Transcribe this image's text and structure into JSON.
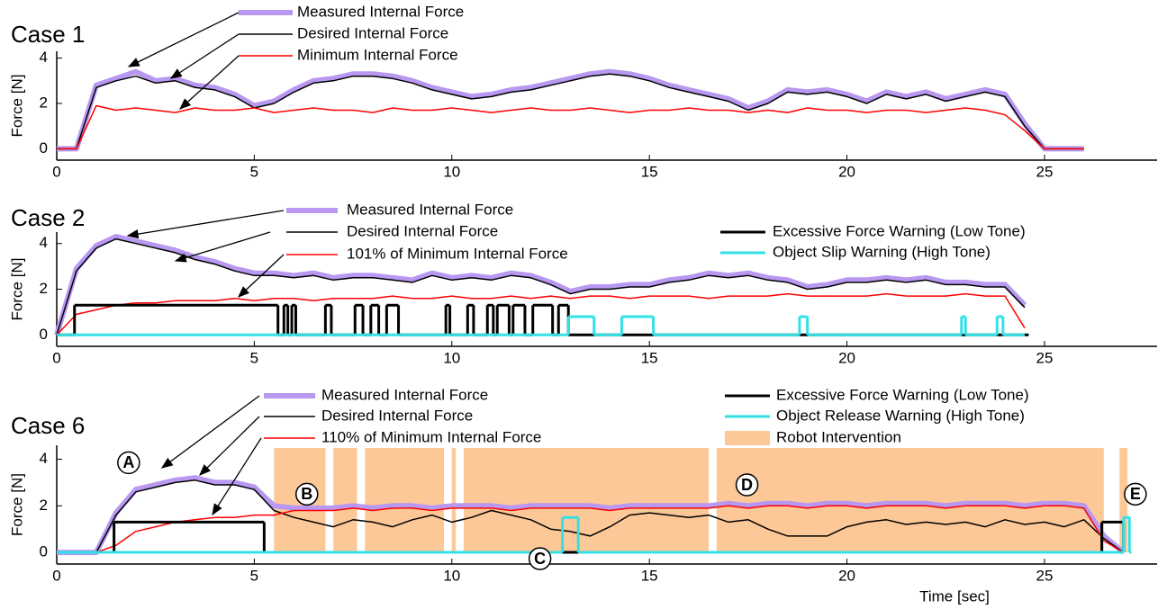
{
  "chart_data": [
    {
      "type": "line",
      "title": "Case 1",
      "ylabel": "Force [N]",
      "xlim": [
        0,
        27.85
      ],
      "ylim": [
        -0.5,
        4.3
      ],
      "xticks": [
        0,
        5,
        10,
        15,
        20,
        25
      ],
      "yticks": [
        0,
        2,
        4
      ],
      "x": [
        0,
        0.5,
        1,
        1.5,
        2,
        2.5,
        3,
        3.5,
        4,
        4.5,
        5,
        5.5,
        6,
        6.5,
        7,
        7.5,
        8,
        8.5,
        9,
        9.5,
        10,
        10.5,
        11,
        11.5,
        12,
        12.5,
        13,
        13.5,
        14,
        14.5,
        15,
        15.5,
        16,
        16.5,
        17,
        17.5,
        18,
        18.5,
        19,
        19.5,
        20,
        20.5,
        21,
        21.5,
        22,
        22.5,
        23,
        23.5,
        24,
        24.5,
        25,
        25.5,
        26
      ],
      "series": [
        {
          "name": "Measured Internal Force",
          "color": "#b898f0",
          "line_width": 6,
          "values": [
            0,
            0,
            2.8,
            3.1,
            3.4,
            3.0,
            3.1,
            2.8,
            2.7,
            2.4,
            1.9,
            2.1,
            2.6,
            3.0,
            3.1,
            3.3,
            3.3,
            3.2,
            3.0,
            2.7,
            2.5,
            2.3,
            2.4,
            2.6,
            2.7,
            2.9,
            3.1,
            3.3,
            3.4,
            3.3,
            3.1,
            2.8,
            2.6,
            2.4,
            2.2,
            1.8,
            2.1,
            2.6,
            2.5,
            2.6,
            2.4,
            2.1,
            2.5,
            2.3,
            2.5,
            2.2,
            2.4,
            2.6,
            2.4,
            1.1,
            0,
            0,
            0
          ]
        },
        {
          "name": "Desired Internal Force",
          "color": "#000000",
          "line_width": 1.5,
          "values": [
            0,
            0,
            2.7,
            3.0,
            3.2,
            2.9,
            3.0,
            2.7,
            2.6,
            2.3,
            1.8,
            2.0,
            2.5,
            2.9,
            3.0,
            3.2,
            3.2,
            3.1,
            2.9,
            2.6,
            2.4,
            2.2,
            2.3,
            2.5,
            2.6,
            2.8,
            3.0,
            3.2,
            3.3,
            3.2,
            3.0,
            2.7,
            2.5,
            2.3,
            2.1,
            1.7,
            2.0,
            2.5,
            2.4,
            2.5,
            2.3,
            2.0,
            2.4,
            2.2,
            2.4,
            2.1,
            2.3,
            2.5,
            2.3,
            1.0,
            0,
            0,
            0
          ]
        },
        {
          "name": "Minimum Internal Force",
          "color": "#ff0000",
          "line_width": 1.5,
          "values": [
            0,
            0,
            1.9,
            1.7,
            1.8,
            1.7,
            1.6,
            1.8,
            1.7,
            1.7,
            1.8,
            1.6,
            1.7,
            1.8,
            1.7,
            1.7,
            1.6,
            1.8,
            1.7,
            1.7,
            1.8,
            1.7,
            1.6,
            1.7,
            1.8,
            1.7,
            1.7,
            1.8,
            1.7,
            1.6,
            1.7,
            1.7,
            1.8,
            1.7,
            1.7,
            1.6,
            1.7,
            1.6,
            1.8,
            1.7,
            1.7,
            1.6,
            1.7,
            1.7,
            1.6,
            1.7,
            1.8,
            1.7,
            1.5,
            0.8,
            0,
            0,
            0
          ]
        }
      ]
    },
    {
      "type": "line",
      "title": "Case 2",
      "ylabel": "Force [N]",
      "xlim": [
        0,
        27.85
      ],
      "ylim": [
        -0.5,
        4.5
      ],
      "xticks": [
        0,
        5,
        10,
        15,
        20,
        25
      ],
      "yticks": [
        0,
        2,
        4
      ],
      "x": [
        0,
        0.5,
        1,
        1.5,
        2,
        2.5,
        3,
        3.5,
        4,
        4.5,
        5,
        5.5,
        6,
        6.5,
        7,
        7.5,
        8,
        8.5,
        9,
        9.5,
        10,
        10.5,
        11,
        11.5,
        12,
        12.5,
        13,
        13.5,
        14,
        14.5,
        15,
        15.5,
        16,
        16.5,
        17,
        17.5,
        18,
        18.5,
        19,
        19.5,
        20,
        20.5,
        21,
        21.5,
        22,
        22.5,
        23,
        23.5,
        24,
        24.5
      ],
      "series": [
        {
          "name": "Measured Internal Force",
          "color": "#b898f0",
          "line_width": 6,
          "values": [
            0,
            2.9,
            3.9,
            4.3,
            4.1,
            3.9,
            3.7,
            3.4,
            3.2,
            2.9,
            2.7,
            2.7,
            2.6,
            2.7,
            2.5,
            2.6,
            2.6,
            2.5,
            2.4,
            2.7,
            2.5,
            2.6,
            2.5,
            2.7,
            2.6,
            2.3,
            1.9,
            2.1,
            2.1,
            2.2,
            2.2,
            2.4,
            2.5,
            2.7,
            2.6,
            2.7,
            2.5,
            2.4,
            2.1,
            2.2,
            2.4,
            2.4,
            2.5,
            2.4,
            2.5,
            2.3,
            2.3,
            2.2,
            2.2,
            1.3
          ]
        },
        {
          "name": "Desired Internal Force",
          "color": "#000000",
          "line_width": 1.5,
          "values": [
            0,
            2.8,
            3.8,
            4.2,
            4.0,
            3.8,
            3.6,
            3.3,
            3.1,
            2.8,
            2.6,
            2.6,
            2.5,
            2.6,
            2.4,
            2.5,
            2.5,
            2.4,
            2.3,
            2.6,
            2.4,
            2.5,
            2.4,
            2.6,
            2.5,
            2.2,
            1.8,
            2.0,
            2.0,
            2.1,
            2.1,
            2.3,
            2.4,
            2.6,
            2.5,
            2.6,
            2.4,
            2.3,
            2.0,
            2.1,
            2.3,
            2.3,
            2.4,
            2.3,
            2.4,
            2.2,
            2.2,
            2.1,
            2.1,
            1.2
          ]
        },
        {
          "name": "101% of Minimum Internal Force",
          "color": "#ff0000",
          "line_width": 1.5,
          "values": [
            0,
            0.9,
            1.1,
            1.3,
            1.4,
            1.4,
            1.5,
            1.5,
            1.5,
            1.6,
            1.5,
            1.6,
            1.6,
            1.5,
            1.6,
            1.6,
            1.6,
            1.7,
            1.6,
            1.6,
            1.7,
            1.6,
            1.6,
            1.7,
            1.6,
            1.7,
            1.6,
            1.7,
            1.7,
            1.6,
            1.7,
            1.7,
            1.7,
            1.6,
            1.7,
            1.7,
            1.7,
            1.8,
            1.7,
            1.7,
            1.7,
            1.7,
            1.8,
            1.7,
            1.7,
            1.7,
            1.8,
            1.7,
            1.7,
            0.3
          ]
        },
        {
          "name": "Excessive Force Warning (Low Tone)",
          "color": "#000000",
          "line_width": 3,
          "drawstyle": "steps-post",
          "x": [
            0,
            0.45,
            5.6,
            5.75,
            5.85,
            5.95,
            6.05,
            6.8,
            6.95,
            7.55,
            7.75,
            7.95,
            8.15,
            8.35,
            8.65,
            9.85,
            9.95,
            10.4,
            10.55,
            10.9,
            11.05,
            11.15,
            11.45,
            11.55,
            11.85,
            12.05,
            12.55,
            12.7,
            12.95,
            24.6
          ],
          "values": [
            0,
            1.3,
            0,
            1.3,
            0,
            1.3,
            0,
            1.3,
            0,
            1.3,
            0,
            1.3,
            0,
            1.3,
            0,
            1.3,
            0,
            1.3,
            0,
            1.3,
            0,
            1.3,
            0,
            1.3,
            0,
            1.3,
            0,
            1.3,
            0,
            0
          ]
        },
        {
          "name": "Object Slip Warning (High Tone)",
          "color": "#33e0e6",
          "line_width": 3,
          "drawstyle": "steps-post",
          "x": [
            0,
            12.95,
            13.6,
            14.3,
            15.1,
            18.8,
            19.0,
            22.9,
            23.0,
            23.8,
            23.95,
            24.5
          ],
          "values": [
            0,
            0.8,
            0,
            0.8,
            0,
            0.8,
            0,
            0.8,
            0,
            0.8,
            0,
            0
          ]
        }
      ]
    },
    {
      "type": "line",
      "title": "Case 6",
      "ylabel": "Force [N]",
      "xlabel": "Time [sec]",
      "xlim": [
        0,
        27.85
      ],
      "ylim": [
        -0.5,
        4.6
      ],
      "xticks": [
        0,
        5,
        10,
        15,
        20,
        25
      ],
      "yticks": [
        0,
        2,
        4
      ],
      "x": [
        0,
        0.5,
        1,
        1.5,
        2,
        2.5,
        3,
        3.5,
        4,
        4.5,
        5,
        5.5,
        6,
        6.5,
        7,
        7.5,
        8,
        8.5,
        9,
        9.5,
        10,
        10.5,
        11,
        11.5,
        12,
        12.5,
        13,
        13.5,
        14,
        14.5,
        15,
        15.5,
        16,
        16.5,
        17,
        17.5,
        18,
        18.5,
        19,
        19.5,
        20,
        20.5,
        21,
        21.5,
        22,
        22.5,
        23,
        23.5,
        24,
        24.5,
        25,
        25.5,
        26,
        26.5,
        27
      ],
      "intervals": {
        "name": "Robot Intervention",
        "color": "#fcc898",
        "spans": [
          [
            5.5,
            6.8
          ],
          [
            7.0,
            7.6
          ],
          [
            7.8,
            9.8
          ],
          [
            10.0,
            10.1
          ],
          [
            10.3,
            16.5
          ],
          [
            16.7,
            26.5
          ],
          [
            26.9,
            27.1
          ]
        ]
      },
      "series": [
        {
          "name": "Measured Internal Force",
          "color": "#b898f0",
          "line_width": 6,
          "values": [
            0,
            0,
            0,
            1.7,
            2.7,
            2.9,
            3.1,
            3.2,
            3.0,
            3.0,
            2.8,
            2.0,
            1.9,
            1.9,
            1.9,
            2.0,
            1.9,
            2.0,
            2.0,
            1.9,
            2.0,
            2.0,
            2.0,
            1.9,
            2.0,
            2.0,
            2.0,
            2.0,
            1.9,
            2.0,
            2.0,
            2.0,
            2.0,
            2.0,
            2.1,
            2.0,
            2.1,
            2.1,
            2.0,
            2.1,
            2.1,
            2.0,
            2.1,
            2.1,
            2.1,
            2.0,
            2.1,
            2.1,
            2.1,
            2.0,
            2.1,
            2.1,
            2.0,
            0.7,
            0
          ]
        },
        {
          "name": "Desired Internal Force",
          "color": "#000000",
          "line_width": 1.5,
          "values": [
            0,
            0,
            0,
            1.6,
            2.6,
            2.8,
            3.0,
            3.1,
            2.9,
            2.9,
            2.7,
            1.8,
            1.5,
            1.3,
            1.1,
            1.4,
            1.3,
            1.1,
            1.4,
            1.6,
            1.3,
            1.5,
            1.8,
            1.6,
            1.4,
            1.0,
            0.9,
            0.7,
            1.1,
            1.6,
            1.7,
            1.6,
            1.5,
            1.6,
            1.3,
            1.4,
            1.0,
            0.7,
            0.7,
            0.7,
            1.1,
            1.3,
            1.4,
            1.2,
            1.3,
            1.2,
            1.3,
            1.1,
            1.4,
            1.2,
            1.3,
            1.1,
            1.4,
            0.6,
            0
          ]
        },
        {
          "name": "110% of Minimum Internal Force",
          "color": "#ff0000",
          "line_width": 1.5,
          "values": [
            0,
            0,
            0,
            0.3,
            0.9,
            1.1,
            1.3,
            1.4,
            1.5,
            1.5,
            1.6,
            1.6,
            1.8,
            1.8,
            1.8,
            1.9,
            1.8,
            1.9,
            1.9,
            1.8,
            1.9,
            1.9,
            1.9,
            1.8,
            1.9,
            1.9,
            1.9,
            1.9,
            1.8,
            1.9,
            1.9,
            1.9,
            1.9,
            1.9,
            2.0,
            1.9,
            2.0,
            2.0,
            1.9,
            2.0,
            2.0,
            1.9,
            2.0,
            2.0,
            2.0,
            1.9,
            2.0,
            2.0,
            2.0,
            1.9,
            2.0,
            2.0,
            1.9,
            0.5,
            0
          ]
        },
        {
          "name": "Excessive Force Warning (Low Tone)",
          "color": "#000000",
          "line_width": 3,
          "drawstyle": "steps-post",
          "x": [
            0,
            1.45,
            5.25,
            26.45,
            27.0
          ],
          "values": [
            0,
            1.3,
            0,
            1.3,
            0
          ]
        },
        {
          "name": "Object Release Warning (High Tone)",
          "color": "#33e0e6",
          "line_width": 3,
          "drawstyle": "steps-post",
          "x": [
            0,
            12.8,
            13.2,
            27.0,
            27.15,
            27.2
          ],
          "values": [
            0,
            1.5,
            0,
            1.5,
            0,
            0
          ]
        }
      ],
      "annotations": [
        {
          "text": "A",
          "x": 1.82,
          "y": 3.85
        },
        {
          "text": "B",
          "x": 6.33,
          "y": 2.5
        },
        {
          "text": "C",
          "x": 12.23,
          "y": -0.27
        },
        {
          "text": "D",
          "x": 17.47,
          "y": 2.9
        },
        {
          "text": "E",
          "x": 27.3,
          "y": 2.5
        }
      ]
    }
  ]
}
